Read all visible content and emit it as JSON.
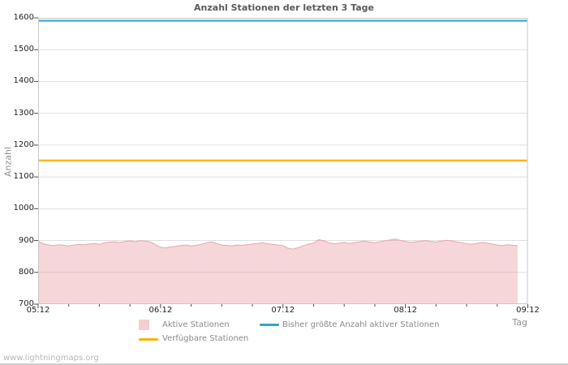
{
  "watermark": "www.lightningmaps.org",
  "chart_data": {
    "type": "area",
    "title": "Anzahl Stationen der letzten 3 Tage",
    "xlabel": "Tag",
    "ylabel": "Anzahl",
    "ylim": [
      700,
      1600
    ],
    "yticks": [
      700,
      800,
      900,
      1000,
      1100,
      1200,
      1300,
      1400,
      1500,
      1600
    ],
    "x_axis_days": [
      "05.12",
      "06.12",
      "07.12",
      "08.12",
      "09.12"
    ],
    "x_span_hours": 96,
    "minor_xticks_per_day": 4,
    "grid": "horizontal-only",
    "legend_position": "bottom",
    "series": [
      {
        "name": "Aktive Stationen",
        "type": "area",
        "x_unit": "hours since 05.12 00:00",
        "fill_color": "rgba(224,119,128,0.30)",
        "edge_color": "#e2a9ae",
        "values": [
          898,
          890,
          886,
          884,
          887,
          885,
          883,
          886,
          888,
          887,
          889,
          891,
          888,
          893,
          895,
          896,
          894,
          897,
          899,
          896,
          900,
          898,
          896,
          887,
          879,
          877,
          880,
          882,
          884,
          886,
          883,
          885,
          888,
          893,
          896,
          891,
          886,
          884,
          883,
          886,
          885,
          887,
          889,
          891,
          893,
          890,
          888,
          886,
          884,
          876,
          873,
          878,
          884,
          889,
          892,
          903,
          899,
          893,
          890,
          892,
          894,
          891,
          893,
          896,
          898,
          895,
          893,
          896,
          899,
          902,
          905,
          901,
          897,
          894,
          896,
          898,
          900,
          897,
          895,
          898,
          901,
          899,
          896,
          893,
          890,
          888,
          891,
          894,
          892,
          889,
          886,
          884,
          887,
          885,
          884
        ]
      },
      {
        "name": "Bisher größte Anzahl aktiver Stationen",
        "type": "hline",
        "color": "#2fa7cb",
        "value": 1591
      },
      {
        "name": "Verfügbare Stationen",
        "type": "hline",
        "color": "#f9b200",
        "value": 1152
      }
    ],
    "legend": [
      {
        "label": "Aktive Stationen",
        "swatch": "box"
      },
      {
        "label": "Bisher größte Anzahl aktiver Stationen",
        "swatch": "line"
      },
      {
        "label": "Verfügbare Stationen",
        "swatch": "line"
      }
    ],
    "colors": {
      "grid": "#e0e0e0",
      "border": "#c8c8c8",
      "tick": "#4a4a4a",
      "legend_area_swatch": "#f3ced2"
    }
  }
}
